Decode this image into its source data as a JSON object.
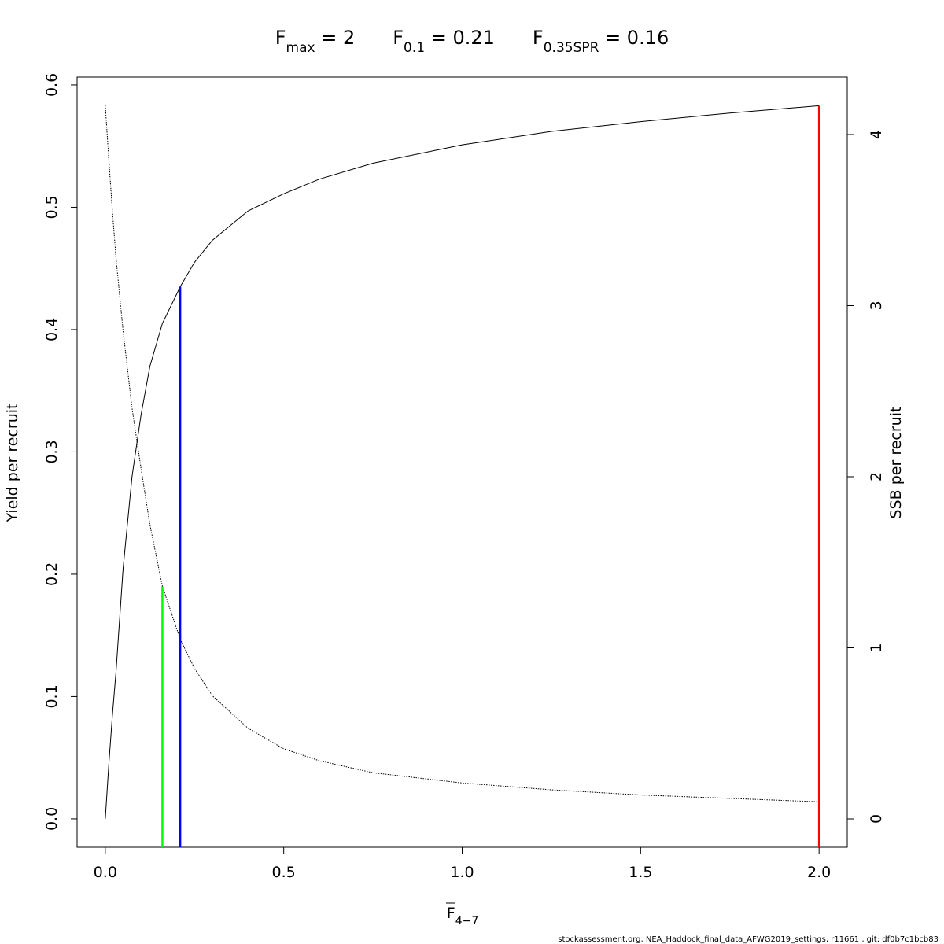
{
  "chart_data": {
    "type": "line",
    "title": [
      {
        "main": "F",
        "sub": "max",
        "rest": " = 2"
      },
      {
        "main": "F",
        "sub": "0.1",
        "rest": " = 0.21"
      },
      {
        "main": "F",
        "sub": "0.35SPR",
        "rest": " = 0.16"
      }
    ],
    "x_label": {
      "main": "F",
      "sub": "4−7"
    },
    "y_label": "Yield per recruit",
    "y2_label": "SSB per recruit",
    "footer": "stockassessment.org, NEA_Haddock_final_data_AFWG2019_settings, r11661 , git: df0b7c1bcb83",
    "x": [
      0,
      0.01,
      0.02,
      0.03,
      0.05,
      0.075,
      0.1,
      0.125,
      0.16,
      0.21,
      0.25,
      0.3,
      0.4,
      0.5,
      0.6,
      0.75,
      1.0,
      1.25,
      1.5,
      1.75,
      2.0
    ],
    "series": [
      {
        "name": "Yield per recruit",
        "color": "#000000",
        "dash": false,
        "values": [
          0,
          0.045,
          0.085,
          0.12,
          0.205,
          0.28,
          0.33,
          0.37,
          0.405,
          0.435,
          0.455,
          0.473,
          0.497,
          0.511,
          0.523,
          0.536,
          0.551,
          0.562,
          0.57,
          0.577,
          0.583
        ]
      },
      {
        "name": "SSB per recruit",
        "color": "#000000",
        "dash": true,
        "axis": "y2",
        "values": [
          4.17,
          3.85,
          3.55,
          3.28,
          2.85,
          2.4,
          2.05,
          1.72,
          1.36,
          1.05,
          0.88,
          0.72,
          0.53,
          0.41,
          0.34,
          0.27,
          0.21,
          0.17,
          0.14,
          0.12,
          0.1
        ]
      }
    ],
    "reference_lines": [
      {
        "x": 0.16,
        "y": 0.19,
        "color": "#00ff00"
      },
      {
        "x": 0.21,
        "y": 0.435,
        "color": "#0000ff"
      },
      {
        "x": 2.0,
        "y": 0.583,
        "color": "#ff0000"
      }
    ],
    "xlim": [
      -0.079,
      2.079
    ],
    "xticks": [
      {
        "value": 0,
        "label": "0.0"
      },
      0.5,
      {
        "value": 1,
        "label": "1.0"
      },
      1.5,
      {
        "value": 2,
        "label": "2.0"
      }
    ],
    "ylim": [
      -0.0232,
      0.6064
    ],
    "yticks": [
      {
        "value": 0,
        "label": "0.0"
      },
      0.1,
      0.2,
      0.3,
      0.4,
      0.5,
      0.6
    ],
    "y2lim": [
      -0.1655,
      4.3356
    ],
    "y2ticks": [
      0,
      1,
      2,
      3,
      4
    ]
  }
}
